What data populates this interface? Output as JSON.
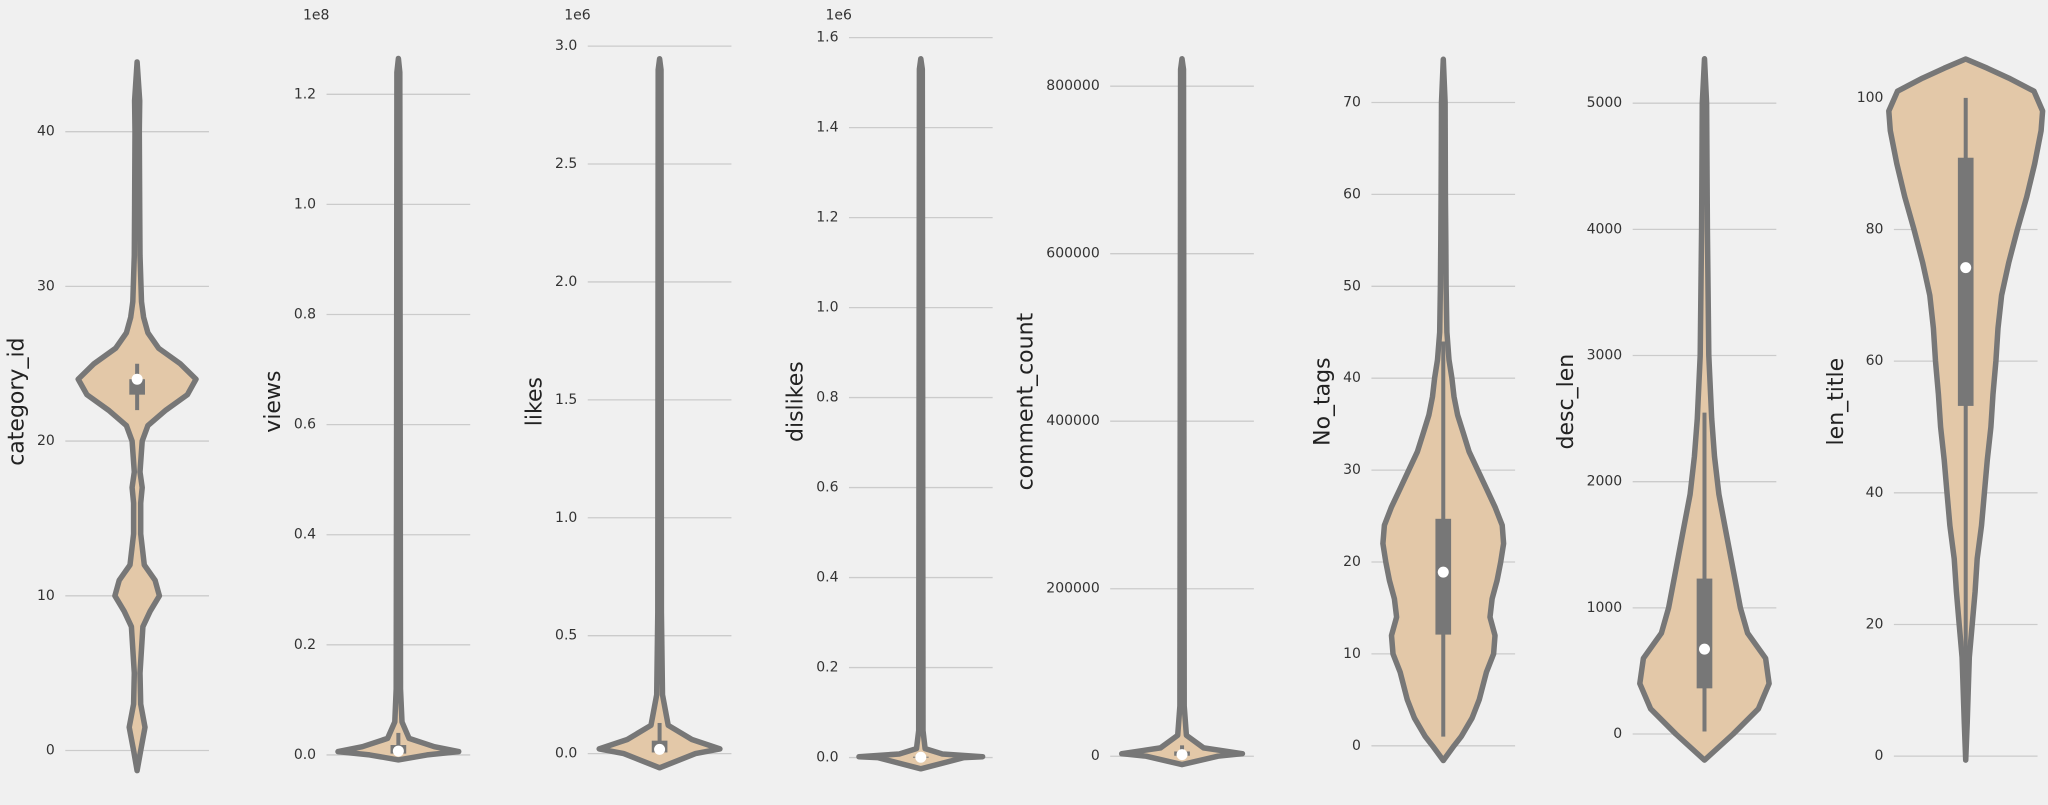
{
  "chart_data": [
    {
      "type": "violin",
      "ylabel": "category_id",
      "ylim": [
        -1.3,
        46.4
      ],
      "yticks": [
        0,
        10,
        20,
        30,
        40
      ],
      "grid": true,
      "fill": "#e3c8a8",
      "edge": "#777777",
      "kde": {
        "y": [
          -1.3,
          0,
          1.5,
          3,
          5,
          8,
          9,
          10,
          11,
          12,
          14,
          16,
          17,
          18,
          20,
          21,
          22,
          23,
          24,
          25,
          26,
          27,
          28,
          29,
          32,
          35,
          40,
          42,
          44.5
        ],
        "density": [
          0,
          0.05,
          0.11,
          0.05,
          0.04,
          0.08,
          0.18,
          0.31,
          0.25,
          0.1,
          0.05,
          0.05,
          0.07,
          0.04,
          0.07,
          0.15,
          0.4,
          0.7,
          0.82,
          0.6,
          0.3,
          0.15,
          0.09,
          0.06,
          0.04,
          0.035,
          0.03,
          0.035,
          0
        ]
      },
      "box": {
        "whisker_low": 22,
        "q1": 23,
        "median": 24,
        "q3": 24,
        "whisker_high": 25
      }
    },
    {
      "type": "violin",
      "ylabel": "views",
      "offset_text": "1e8",
      "ylim": [
        -2850000,
        131200000
      ],
      "yticks": [
        {
          "value": 0,
          "label": "0.0"
        },
        {
          "value": 20000000,
          "label": "0.2"
        },
        {
          "value": 40000000,
          "label": "0.4"
        },
        {
          "value": 60000000,
          "label": "0.6"
        },
        {
          "value": 80000000,
          "label": "0.8"
        },
        {
          "value": 100000000,
          "label": "1.0"
        },
        {
          "value": 120000000,
          "label": "1.2"
        }
      ],
      "grid": true,
      "fill": "#e3c8a8",
      "edge": "#777777",
      "kde": {
        "y": [
          -900000,
          0,
          600000,
          1500000,
          3000000,
          6000000,
          12000000,
          60000000,
          124000000,
          126500000
        ],
        "density": [
          0,
          0.4,
          0.84,
          0.5,
          0.15,
          0.05,
          0.03,
          0.025,
          0.02,
          0
        ]
      },
      "box": {
        "whisker_low": 0,
        "q1": 240000,
        "median": 700000,
        "q3": 1800000,
        "whisker_high": 4000000
      }
    },
    {
      "type": "violin",
      "ylabel": "likes",
      "offset_text": "1e6",
      "ylim": [
        -72000,
        3057000
      ],
      "yticks": [
        {
          "value": 0,
          "label": "0.0"
        },
        {
          "value": 500000,
          "label": "0.5"
        },
        {
          "value": 1000000,
          "label": "1.0"
        },
        {
          "value": 1500000,
          "label": "1.5"
        },
        {
          "value": 2000000,
          "label": "2.0"
        },
        {
          "value": 2500000,
          "label": "2.5"
        },
        {
          "value": 3000000,
          "label": "3.0"
        }
      ],
      "grid": true,
      "fill": "#e3c8a8",
      "edge": "#777777",
      "kde": {
        "y": [
          -60000,
          0,
          20000,
          60000,
          120000,
          250000,
          600000,
          2900000,
          2946000
        ],
        "density": [
          0,
          0.5,
          0.84,
          0.45,
          0.12,
          0.04,
          0.025,
          0.02,
          0
        ]
      },
      "box": {
        "whisker_low": 0,
        "q1": 5000,
        "median": 18000,
        "q3": 55000,
        "whisker_high": 130000
      }
    },
    {
      "type": "violin",
      "ylabel": "dislikes",
      "offset_text": "1e6",
      "ylim": [
        -29000,
        1611000
      ],
      "yticks": [
        {
          "value": 0,
          "label": "0.0"
        },
        {
          "value": 200000,
          "label": "0.2"
        },
        {
          "value": 400000,
          "label": "0.4"
        },
        {
          "value": 600000,
          "label": "0.6"
        },
        {
          "value": 800000,
          "label": "0.8"
        },
        {
          "value": 1000000,
          "label": "1.0"
        },
        {
          "value": 1200000,
          "label": "1.2"
        },
        {
          "value": 1400000,
          "label": "1.4"
        },
        {
          "value": 1600000,
          "label": "1.6"
        }
      ],
      "grid": true,
      "fill": "#e3c8a8",
      "edge": "#777777",
      "kde": {
        "y": [
          -25000,
          0,
          2000,
          8000,
          20000,
          60000,
          1530000,
          1553000
        ],
        "density": [
          0,
          0.6,
          0.86,
          0.3,
          0.06,
          0.03,
          0.02,
          0
        ]
      },
      "box": {
        "whisker_low": 0,
        "q1": 200,
        "median": 600,
        "q3": 1900,
        "whisker_high": 4500
      }
    },
    {
      "type": "violin",
      "ylabel": "comment_count",
      "ylim": [
        -17150,
        863900
      ],
      "yticks": [
        0,
        200000,
        400000,
        600000,
        800000
      ],
      "grid": true,
      "fill": "#e3c8a8",
      "edge": "#777777",
      "kde": {
        "y": [
          -10000,
          0,
          3000,
          10000,
          25000,
          60000,
          820000,
          832700
        ],
        "density": [
          0,
          0.5,
          0.84,
          0.3,
          0.06,
          0.03,
          0.02,
          0
        ]
      },
      "box": {
        "whisker_low": 0,
        "q1": 600,
        "median": 1900,
        "q3": 5700,
        "whisker_high": 13000
      }
    },
    {
      "type": "violin",
      "ylabel": "No_tags",
      "ylim": [
        -2.7,
        77.6
      ],
      "yticks": [
        0,
        10,
        20,
        30,
        40,
        50,
        60,
        70
      ],
      "grid": true,
      "fill": "#e3c8a8",
      "edge": "#777777",
      "kde": {
        "y": [
          -1.6,
          0,
          1,
          3,
          5,
          8,
          10,
          12,
          14,
          16,
          18,
          20,
          22,
          24,
          26,
          28,
          30,
          32,
          34,
          36,
          38,
          40,
          42,
          45,
          50,
          55,
          60,
          70,
          74.7
        ],
        "density": [
          0,
          0.15,
          0.25,
          0.4,
          0.5,
          0.6,
          0.7,
          0.72,
          0.65,
          0.68,
          0.75,
          0.8,
          0.84,
          0.82,
          0.72,
          0.6,
          0.48,
          0.36,
          0.28,
          0.2,
          0.15,
          0.12,
          0.08,
          0.05,
          0.04,
          0.035,
          0.03,
          0.025,
          0
        ]
      },
      "box": {
        "whisker_low": 1,
        "q1": 12.1,
        "median": 18.9,
        "q3": 24.7,
        "whisker_high": 44
      }
    },
    {
      "type": "violin",
      "ylabel": "desc_len",
      "ylim": [
        -290,
        5559
      ],
      "yticks": [
        0,
        1000,
        2000,
        3000,
        4000,
        5000
      ],
      "grid": true,
      "fill": "#e3c8a8",
      "edge": "#777777",
      "kde": {
        "y": [
          -207,
          0,
          200,
          400,
          600,
          800,
          1000,
          1300,
          1600,
          1900,
          2200,
          2500,
          3000,
          3500,
          4000,
          5000,
          5352
        ],
        "density": [
          0,
          0.4,
          0.75,
          0.9,
          0.85,
          0.6,
          0.5,
          0.4,
          0.3,
          0.2,
          0.14,
          0.1,
          0.06,
          0.05,
          0.04,
          0.03,
          0
        ]
      },
      "box": {
        "whisker_low": 20,
        "q1": 362,
        "median": 673,
        "q3": 1232,
        "whisker_high": 2547
      }
    },
    {
      "type": "violin",
      "ylabel": "len_title",
      "ylim": [
        -2.2,
        109.9
      ],
      "yticks": [
        0,
        20,
        40,
        60,
        80,
        100
      ],
      "grid": true,
      "fill": "#e3c8a8",
      "edge": "#777777",
      "kde": {
        "y": [
          -0.6,
          5,
          15,
          20,
          25,
          30,
          35,
          40,
          45,
          50,
          55,
          60,
          65,
          70,
          75,
          80,
          85,
          90,
          95,
          98,
          101,
          103,
          104.5,
          105.9
        ],
        "density": [
          0,
          0.02,
          0.05,
          0.09,
          0.13,
          0.16,
          0.22,
          0.26,
          0.3,
          0.35,
          0.38,
          0.42,
          0.45,
          0.5,
          0.6,
          0.72,
          0.85,
          0.96,
          1.05,
          1.07,
          0.95,
          0.6,
          0.3,
          0
        ]
      },
      "box": {
        "whisker_low": 0,
        "q1": 53.2,
        "median": 74.2,
        "q3": 90.9,
        "whisker_high": 100
      }
    }
  ]
}
